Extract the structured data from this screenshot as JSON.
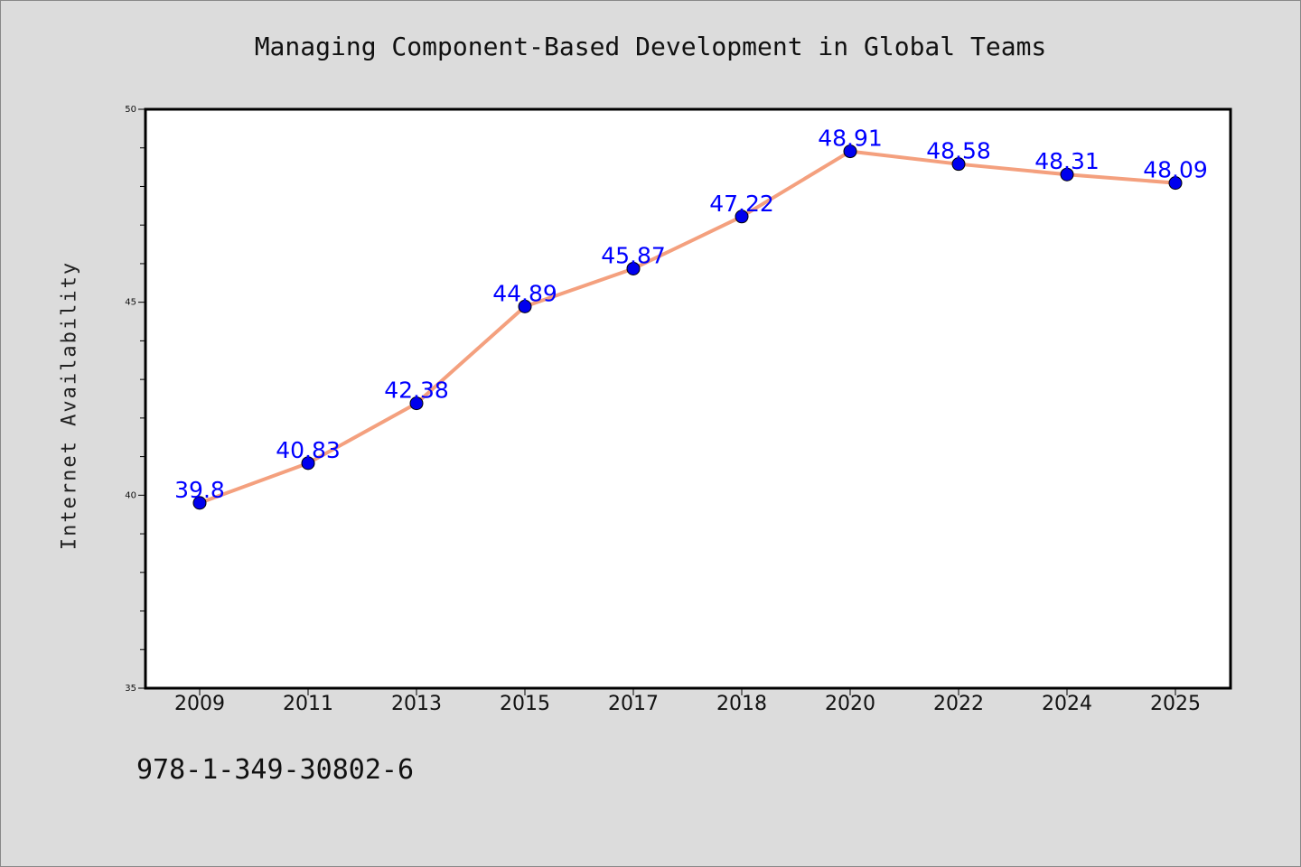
{
  "chart_data": {
    "type": "line",
    "title": "Managing Component-Based Development in Global Teams",
    "xlabel": "",
    "ylabel": "Internet Availability",
    "categories": [
      "2009",
      "2011",
      "2013",
      "2015",
      "2017",
      "2018",
      "2020",
      "2022",
      "2024",
      "2025"
    ],
    "series": [
      {
        "values": [
          39.8,
          40.83,
          42.38,
          44.89,
          45.87,
          47.22,
          48.91,
          48.58,
          48.31,
          48.09
        ],
        "data_labels": [
          "39.8",
          "40.83",
          "42.38",
          "44.89",
          "45.87",
          "47.22",
          "48.91",
          "48.58",
          "48.31",
          "48.09"
        ]
      }
    ],
    "ylim": [
      35,
      50
    ],
    "yticks": [
      "35",
      "40",
      "45",
      "50"
    ],
    "grid": false,
    "colors": {
      "line": "#f4a07e",
      "marker": "#0000ee",
      "data_label": "#0000ff",
      "background": "#dcdcdc",
      "plot_area": "#ffffff"
    }
  },
  "footer": {
    "isbn": "978-1-349-30802-6"
  }
}
